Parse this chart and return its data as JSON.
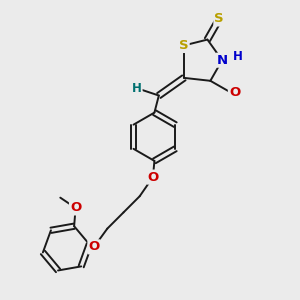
{
  "bg_color": "#ebebeb",
  "bond_color": "#1a1a1a",
  "bond_width": 1.4,
  "atom_colors": {
    "S": "#b8a000",
    "N": "#0000cc",
    "O": "#cc0000",
    "H_teal": "#007070",
    "C": "#1a1a1a"
  },
  "figsize": [
    3.0,
    3.0
  ],
  "dpi": 100,
  "xlim": [
    0,
    10
  ],
  "ylim": [
    0,
    10
  ]
}
